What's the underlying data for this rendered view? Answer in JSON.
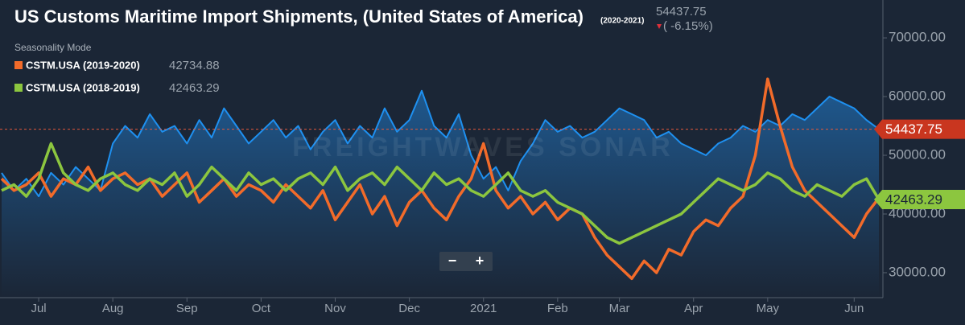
{
  "chart_data": {
    "type": "line",
    "title": "US Customs Maritime Import Shipments, (United States of America)",
    "title_period": "(2020-2021)",
    "change_label": "( -6.15%)",
    "mode_label": "Seasonality Mode",
    "watermark": "FREIGHTWAVES SONAR",
    "zoom_out": "−",
    "zoom_in": "+",
    "categories": [
      null,
      null,
      null,
      "Jul",
      null,
      null,
      null,
      null,
      null,
      "Aug",
      null,
      null,
      null,
      null,
      null,
      "Sep",
      null,
      null,
      null,
      null,
      null,
      "Oct",
      null,
      null,
      null,
      null,
      null,
      "Nov",
      null,
      null,
      null,
      null,
      null,
      "Dec",
      null,
      null,
      null,
      null,
      null,
      "2021",
      null,
      null,
      null,
      null,
      null,
      "Feb",
      null,
      null,
      null,
      null,
      "Mar",
      null,
      null,
      null,
      null,
      null,
      "Apr",
      null,
      null,
      null,
      null,
      null,
      "May",
      null,
      null,
      null,
      null,
      null,
      null,
      "Jun",
      null,
      null
    ],
    "series": [
      {
        "color": "#1e90f0",
        "area": true,
        "values": [
          47000,
          44000,
          46000,
          43000,
          47000,
          45000,
          48000,
          46000,
          44000,
          52000,
          55000,
          53000,
          57000,
          54000,
          55000,
          52000,
          56000,
          53000,
          58000,
          55000,
          52000,
          54000,
          56000,
          53000,
          55000,
          51000,
          54000,
          56000,
          52000,
          55000,
          53000,
          58000,
          54000,
          56000,
          61000,
          55000,
          53000,
          57000,
          50000,
          46000,
          48000,
          44000,
          49000,
          52000,
          56000,
          54000,
          55000,
          53000,
          54000,
          56000,
          58000,
          57000,
          56000,
          53000,
          54000,
          52000,
          51000,
          50000,
          52000,
          53000,
          55000,
          54000,
          56000,
          55000,
          57000,
          56000,
          58000,
          60000,
          59000,
          58000,
          56000,
          54437.75
        ]
      },
      {
        "name": "CSTM.USA (2019-2020)",
        "color": "#f26b2a",
        "values": [
          46000,
          44000,
          45000,
          47000,
          43000,
          46000,
          45000,
          48000,
          44000,
          46000,
          47000,
          45000,
          46000,
          43000,
          45000,
          47000,
          42000,
          44000,
          46000,
          43000,
          45000,
          44000,
          42000,
          45000,
          43000,
          41000,
          44000,
          39000,
          42000,
          45000,
          40000,
          43000,
          38000,
          42000,
          44000,
          41000,
          39000,
          43000,
          46000,
          52000,
          44000,
          41000,
          43000,
          40000,
          42000,
          39000,
          41000,
          40000,
          36000,
          33000,
          31000,
          29000,
          32000,
          30000,
          34000,
          33000,
          37000,
          39000,
          38000,
          41000,
          43000,
          50000,
          63000,
          55000,
          48000,
          44000,
          42000,
          40000,
          38000,
          36000,
          40000,
          42734.88
        ]
      },
      {
        "name": "CSTM.USA (2018-2019)",
        "color": "#8cc63f",
        "values": [
          44000,
          45000,
          43000,
          46000,
          52000,
          47000,
          45000,
          44000,
          46000,
          47000,
          45000,
          44000,
          46000,
          45000,
          47000,
          43000,
          45000,
          48000,
          46000,
          44000,
          47000,
          45000,
          46000,
          44000,
          46000,
          47000,
          45000,
          48000,
          44000,
          46000,
          47000,
          45000,
          48000,
          46000,
          44000,
          47000,
          45000,
          46000,
          44000,
          43000,
          45000,
          47000,
          44000,
          43000,
          44000,
          42000,
          41000,
          40000,
          38000,
          36000,
          35000,
          36000,
          37000,
          38000,
          39000,
          40000,
          42000,
          44000,
          46000,
          45000,
          44000,
          45000,
          47000,
          46000,
          44000,
          43000,
          45000,
          44000,
          43000,
          45000,
          46000,
          42463.29
        ]
      }
    ],
    "ylim": [
      25750,
      76450
    ],
    "yticks": [
      {
        "value": 30000,
        "label": "30000.00"
      },
      {
        "value": 40000,
        "label": "40000.00"
      },
      {
        "value": 50000,
        "label": "50000.00"
      },
      {
        "value": 60000,
        "label": "60000.00"
      },
      {
        "value": 70000,
        "label": "70000.00"
      }
    ],
    "grid": false
  }
}
